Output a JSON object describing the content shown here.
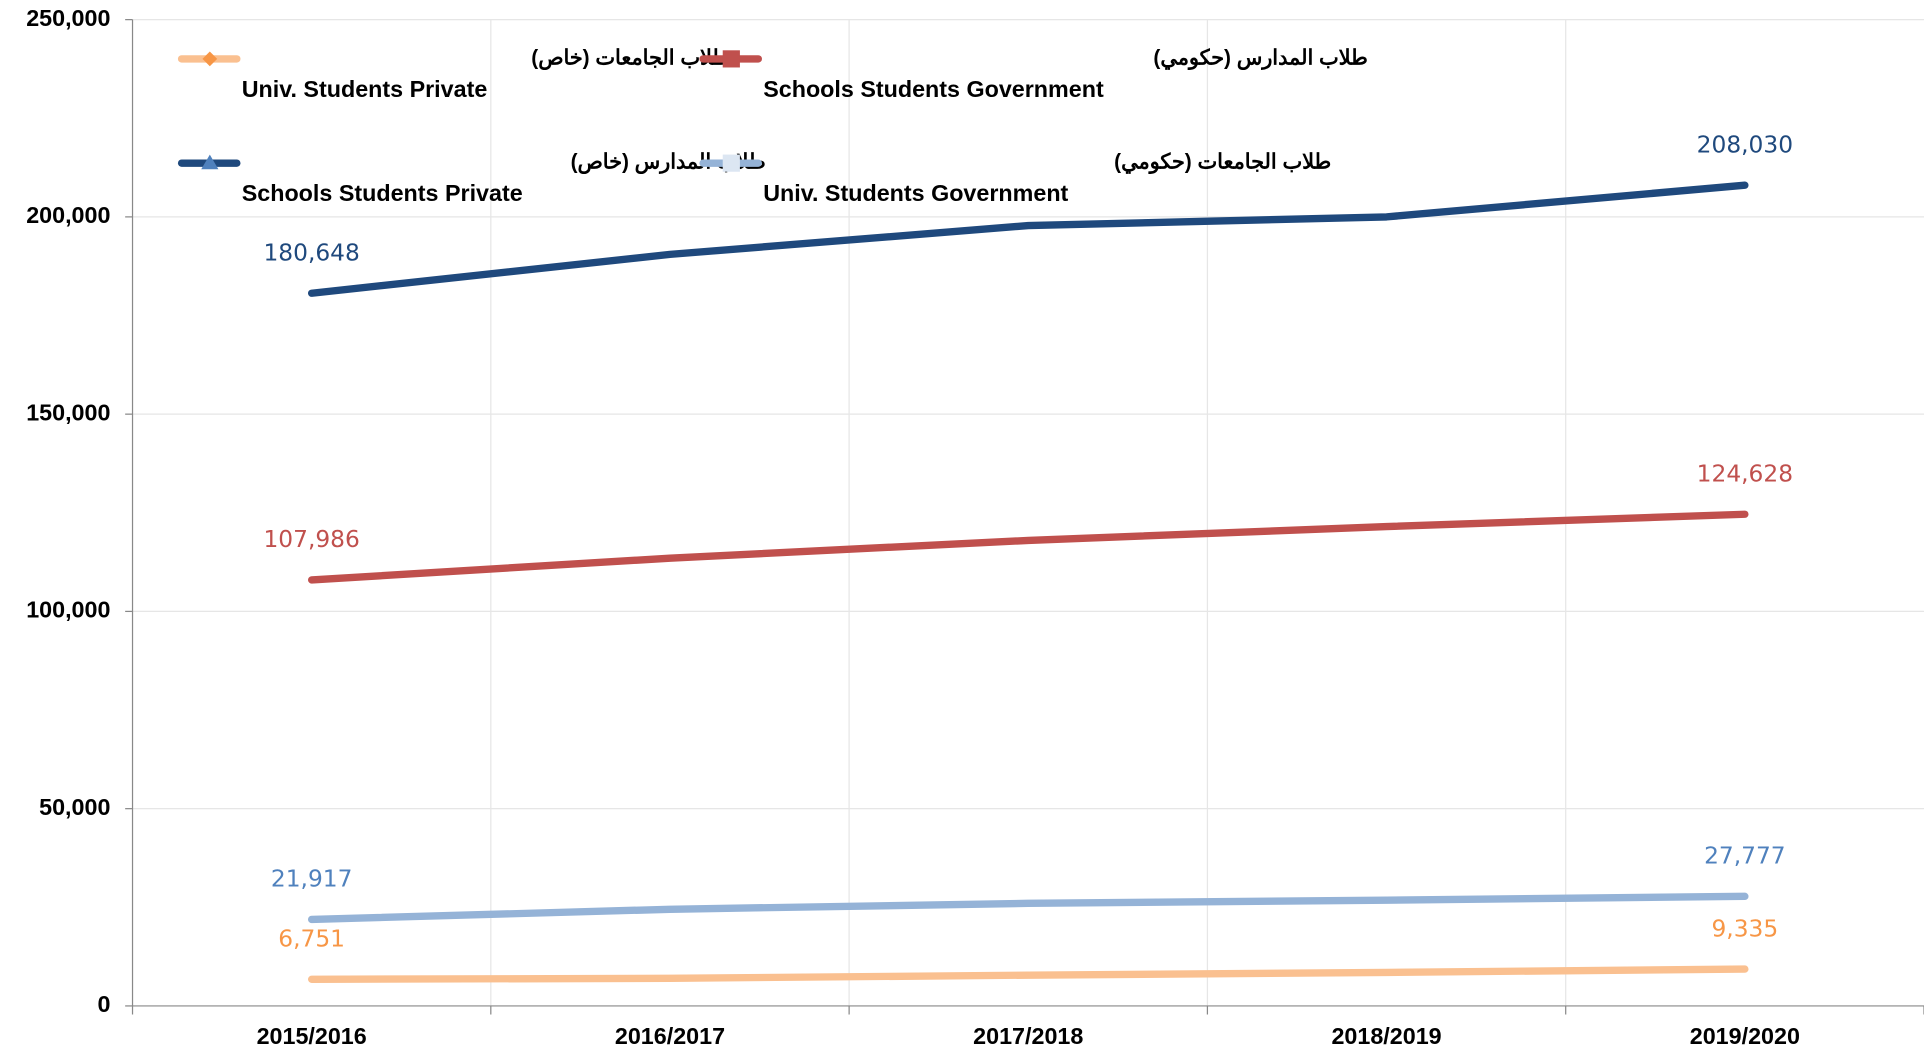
{
  "chart_data": {
    "type": "line",
    "categories": [
      "2015/2016",
      "2016/2017",
      "2017/2018",
      "2018/2019",
      "2019/2020"
    ],
    "series": [
      {
        "name": "Univ. Students Private",
        "name_ar": "طلاب الجامعات (خاص)",
        "color": "#fac090",
        "label_color": "#f79646",
        "marker": "diamond",
        "marker_color": "#f79646",
        "values": [
          6751,
          7000,
          7800,
          8500,
          9335
        ],
        "value_labels": [
          "6,751",
          null,
          null,
          null,
          "9,335"
        ]
      },
      {
        "name": "Schools Students Government",
        "name_ar": "طلاب المدارس (حكومي)",
        "color": "#c0504d",
        "label_color": "#c0504d",
        "marker": "square",
        "marker_color": "#c0504d",
        "values": [
          107986,
          113500,
          118000,
          121500,
          124628
        ],
        "value_labels": [
          "107,986",
          null,
          null,
          null,
          "124,628"
        ]
      },
      {
        "name": "Schools Students Private",
        "name_ar": "طلاب المدارس (خاص)",
        "color": "#1f497d",
        "label_color": "#1f497d",
        "marker": "triangle",
        "marker_color": "#4f81bd",
        "values": [
          180648,
          190500,
          197800,
          200000,
          208030
        ],
        "value_labels": [
          "180,648",
          null,
          null,
          null,
          "208,030"
        ]
      },
      {
        "name": "Univ. Students Government",
        "name_ar": "طلاب الجامعات (حكومي)",
        "color": "#95b3d7",
        "label_color": "#4f81bd",
        "marker": "square",
        "marker_color": "#dce6f2",
        "values": [
          21917,
          24500,
          26000,
          26800,
          27777
        ],
        "value_labels": [
          "21,917",
          null,
          null,
          null,
          "27,777"
        ]
      }
    ],
    "ylim": [
      0,
      250000
    ],
    "yticks": [
      0,
      {
        "value": 50000,
        "label": "50,000"
      },
      {
        "value": 100000,
        "label": "100,000"
      },
      {
        "value": 150000,
        "label": "150,000"
      },
      {
        "value": 200000,
        "label": "200,000"
      },
      {
        "value": 250000,
        "label": "250,000"
      }
    ],
    "grid": true
  }
}
